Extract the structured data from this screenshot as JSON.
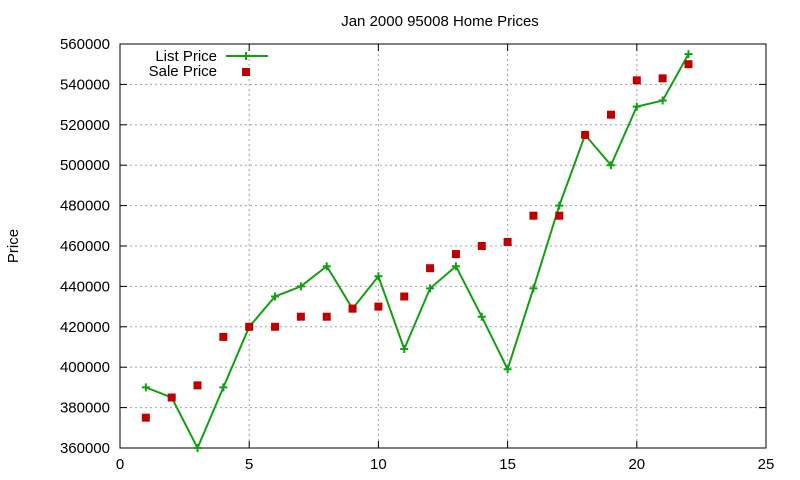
{
  "chart_data": {
    "type": "line",
    "title": "Jan 2000 95008 Home Prices",
    "xlabel": "",
    "ylabel": "Price",
    "xlim": [
      0,
      25
    ],
    "ylim": [
      360000,
      560000
    ],
    "xticks": [
      "0",
      "5",
      "10",
      "15",
      "20",
      "25"
    ],
    "yticks": [
      "360000",
      "380000",
      "400000",
      "420000",
      "440000",
      "460000",
      "480000",
      "500000",
      "520000",
      "540000",
      "560000"
    ],
    "grid": true,
    "legend_position": "top-left",
    "series": [
      {
        "name": "List Price",
        "style": "line-plus",
        "color": "#11a011",
        "x": [
          1,
          2,
          3,
          4,
          5,
          6,
          7,
          8,
          9,
          10,
          11,
          12,
          13,
          14,
          15,
          16,
          17,
          18,
          19,
          20,
          21,
          22
        ],
        "y": [
          390000,
          385000,
          360000,
          390000,
          420000,
          435000,
          440000,
          450000,
          429000,
          445000,
          409000,
          439000,
          450000,
          425000,
          399000,
          439000,
          480000,
          515000,
          500000,
          529000,
          532000,
          555000
        ]
      },
      {
        "name": "Sale Price",
        "style": "square-points",
        "color": "#c00000",
        "x": [
          1,
          2,
          3,
          4,
          5,
          6,
          7,
          8,
          9,
          10,
          11,
          12,
          13,
          14,
          15,
          16,
          17,
          18,
          19,
          20,
          21,
          22
        ],
        "y": [
          375000,
          385000,
          391000,
          415000,
          420000,
          420000,
          425000,
          425000,
          429000,
          430000,
          435000,
          449000,
          456000,
          460000,
          462000,
          475000,
          475000,
          515000,
          525000,
          542000,
          543000,
          550000
        ]
      }
    ]
  }
}
